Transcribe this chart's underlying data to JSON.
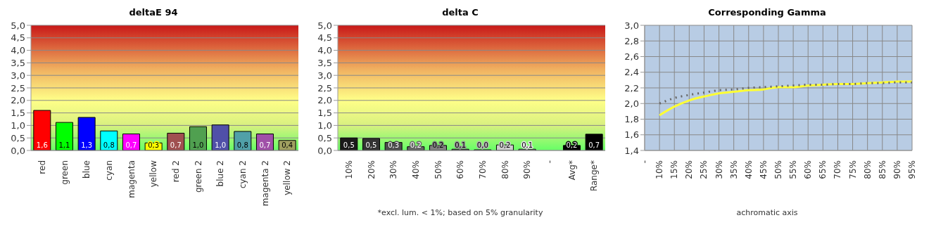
{
  "chart_data": [
    {
      "type": "bar",
      "title": "deltaE 94",
      "categories": [
        "red",
        "green",
        "blue",
        "cyan",
        "magenta",
        "yellow",
        "red 2",
        "green 2",
        "blue 2",
        "cyan 2",
        "magenta 2",
        "yellow 2"
      ],
      "values": [
        1.6,
        1.12,
        1.32,
        0.78,
        0.66,
        0.3,
        0.69,
        0.95,
        1.02,
        0.76,
        0.66,
        0.4
      ],
      "colors": [
        "#ff0000",
        "#00ff00",
        "#0000ff",
        "#00ffff",
        "#ff00ff",
        "#ffff00",
        "#a05050",
        "#50a050",
        "#5050a8",
        "#50a0a8",
        "#a050a8",
        "#a0a060"
      ],
      "value_labels": [
        "1,6",
        "1,1",
        "1,3",
        "0,8",
        "0,7",
        "0,3",
        "0,7",
        "1,0",
        "1,0",
        "0,8",
        "0,7",
        "0,4"
      ],
      "ylim": [
        0,
        5
      ],
      "yticks": [
        {
          "value": 0,
          "label": "0,0"
        },
        {
          "value": 0.5,
          "label": "0,5"
        },
        {
          "value": 1,
          "label": "1,0"
        },
        {
          "value": 1.5,
          "label": "1,5"
        },
        {
          "value": 2,
          "label": "2,0"
        },
        {
          "value": 2.5,
          "label": "2,5"
        },
        {
          "value": 3,
          "label": "3,0"
        },
        {
          "value": 3.5,
          "label": "3,5"
        },
        {
          "value": 4,
          "label": "4,0"
        },
        {
          "value": 4.5,
          "label": "4,5"
        },
        {
          "value": 5,
          "label": "5,0"
        }
      ],
      "grid": "y"
    },
    {
      "type": "bar",
      "title": "delta C",
      "categories": [
        "10%",
        "20%",
        "30%",
        "40%",
        "50%",
        "60%",
        "70%",
        "80%",
        "90%",
        "-",
        "Avg*",
        "Range*"
      ],
      "values": [
        0.5,
        0.48,
        0.32,
        0.15,
        0.2,
        0.05,
        0,
        0.22,
        0.05,
        null,
        0.2,
        0.65
      ],
      "colors": [
        "#1a1a1a",
        "#333333",
        "#4d4d4d",
        "#666666",
        "#808080",
        "#999999",
        "#b3b3b3",
        "#cccccc",
        "#e6e6e6",
        "#000000",
        "#000000",
        "#000000"
      ],
      "value_labels": [
        "0,5",
        "0,5",
        "0,3",
        "0,2",
        "0,2",
        "0,1",
        "0,0",
        "0,2",
        "0,1",
        null,
        "0,2",
        "0,7"
      ],
      "ylim": [
        0,
        5
      ],
      "yticks": [
        {
          "value": 0,
          "label": "0,0"
        },
        {
          "value": 0.5,
          "label": "0,5"
        },
        {
          "value": 1,
          "label": "1,0"
        },
        {
          "value": 1.5,
          "label": "1,5"
        },
        {
          "value": 2,
          "label": "2,0"
        },
        {
          "value": 2.5,
          "label": "2,5"
        },
        {
          "value": 3,
          "label": "3,0"
        },
        {
          "value": 3.5,
          "label": "3,5"
        },
        {
          "value": 4,
          "label": "4,0"
        },
        {
          "value": 4.5,
          "label": "4,5"
        },
        {
          "value": 5,
          "label": "5,0"
        }
      ],
      "grid": "y",
      "annotations": [
        "*excl. lum. < 1%; based on 5% granularity"
      ]
    },
    {
      "type": "line",
      "title": "Corresponding Gamma",
      "xlabel": "achromatic axis",
      "categories": [
        "-",
        "10%",
        "15%",
        "20%",
        "25%",
        "30%",
        "35%",
        "40%",
        "45%",
        "50%",
        "55%",
        "60%",
        "65%",
        "70%",
        "75%",
        "80%",
        "85%",
        "90%",
        "95%"
      ],
      "series": [
        {
          "color": "#ffff33",
          "line_style": "solid",
          "values": [
            null,
            1.85,
            1.96,
            2.04,
            2.09,
            2.13,
            2.15,
            2.17,
            2.18,
            2.21,
            2.21,
            2.23,
            2.24,
            2.25,
            2.25,
            2.26,
            2.27,
            2.28,
            2.28
          ]
        },
        {
          "color": "#666666",
          "line_style": "dotted",
          "values": [
            null,
            2.0,
            2.07,
            2.11,
            2.14,
            2.17,
            2.18,
            2.2,
            2.21,
            2.22,
            2.23,
            2.24,
            2.24,
            2.25,
            2.25,
            2.26,
            2.26,
            2.27,
            2.27
          ]
        }
      ],
      "marker": "none",
      "ylim": [
        1.4,
        3
      ],
      "yticks": [
        {
          "value": 1.4,
          "label": "1,4"
        },
        {
          "value": 1.6,
          "label": "1,6"
        },
        {
          "value": 1.8,
          "label": "1,8"
        },
        {
          "value": 2,
          "label": "2,0"
        },
        {
          "value": 2.2,
          "label": "2,2"
        },
        {
          "value": 2.4,
          "label": "2,4"
        },
        {
          "value": 2.6,
          "label": "2,6"
        },
        {
          "value": 2.8,
          "label": "2,8"
        },
        {
          "value": 3,
          "label": "3,0"
        }
      ],
      "grid": true
    }
  ]
}
